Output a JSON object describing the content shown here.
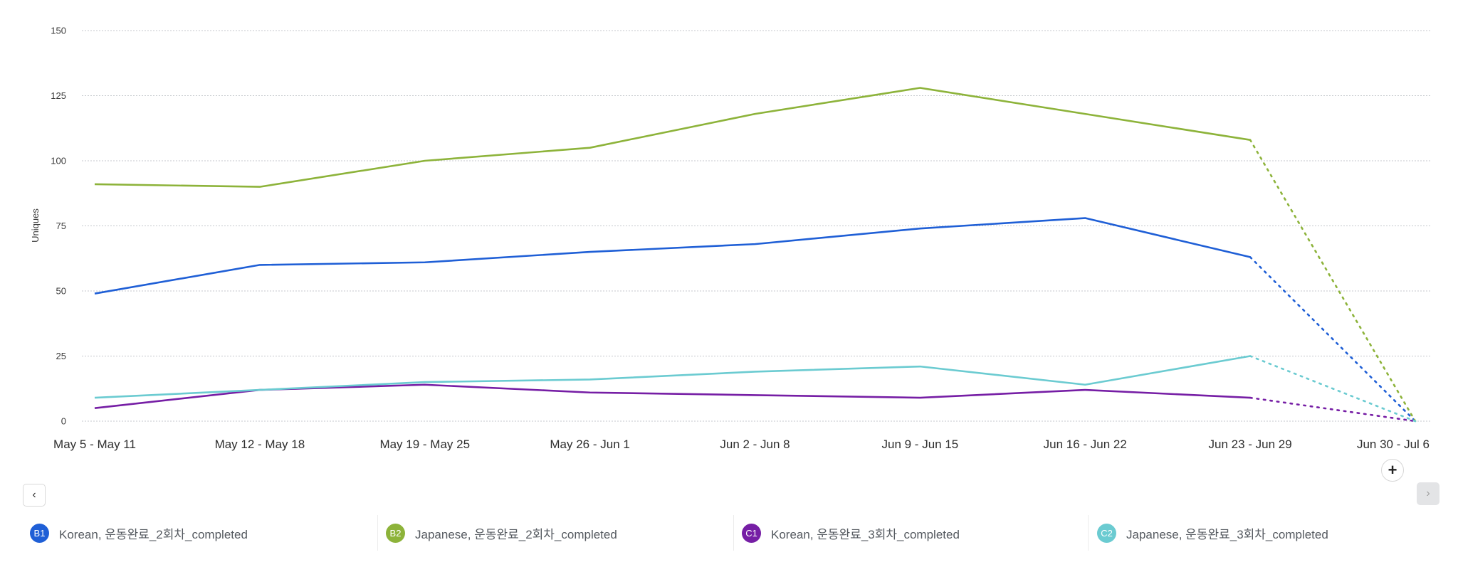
{
  "chart_data": {
    "type": "line",
    "title": "",
    "xlabel": "",
    "ylabel": "Uniques",
    "ylim": [
      0,
      150
    ],
    "yticks": [
      0,
      25,
      50,
      75,
      100,
      125,
      150
    ],
    "grid": true,
    "categories": [
      "May 5 - May 11",
      "May 12 - May 18",
      "May 19 - May 25",
      "May 26 - Jun 1",
      "Jun 2 - Jun 8",
      "Jun 9 - Jun 15",
      "Jun 16 - Jun 22",
      "Jun 23 - Jun 29",
      "Jun 30 - Jul 6"
    ],
    "incomplete_from_index": 7,
    "series": [
      {
        "id": "B1",
        "name": "Korean, 운동완료_2회차_completed",
        "color": "#1f5fd6",
        "values": [
          49,
          60,
          61,
          65,
          68,
          74,
          78,
          63,
          0
        ]
      },
      {
        "id": "B2",
        "name": "Japanese, 운동완료_2회차_completed",
        "color": "#8db33a",
        "values": [
          91,
          90,
          100,
          105,
          118,
          128,
          118,
          108,
          0
        ]
      },
      {
        "id": "C1",
        "name": "Korean, 운동완료_3회차_completed",
        "color": "#761ea5",
        "values": [
          5,
          12,
          14,
          11,
          10,
          9,
          12,
          9,
          0
        ]
      },
      {
        "id": "C2",
        "name": "Japanese, 운동완료_3회차_completed",
        "color": "#6bcbd1",
        "values": [
          9,
          12,
          15,
          16,
          19,
          21,
          14,
          25,
          0
        ]
      }
    ],
    "legend": "bottom"
  },
  "controls": {
    "prev_icon": "chevron-left-icon",
    "prev_glyph": "‹",
    "next_icon": "chevron-right-icon",
    "next_glyph": "›",
    "add_icon": "plus-icon",
    "add_glyph": "+"
  },
  "legend": [
    {
      "badge": "B1",
      "label": "Korean, 운동완료_2회차_completed",
      "color": "#1f5fd6"
    },
    {
      "badge": "B2",
      "label": "Japanese, 운동완료_2회차_completed",
      "color": "#8db33a"
    },
    {
      "badge": "C1",
      "label": "Korean, 운동완료_3회차_completed",
      "color": "#761ea5"
    },
    {
      "badge": "C2",
      "label": "Japanese, 운동완료_3회차_completed",
      "color": "#6bcbd1"
    }
  ]
}
